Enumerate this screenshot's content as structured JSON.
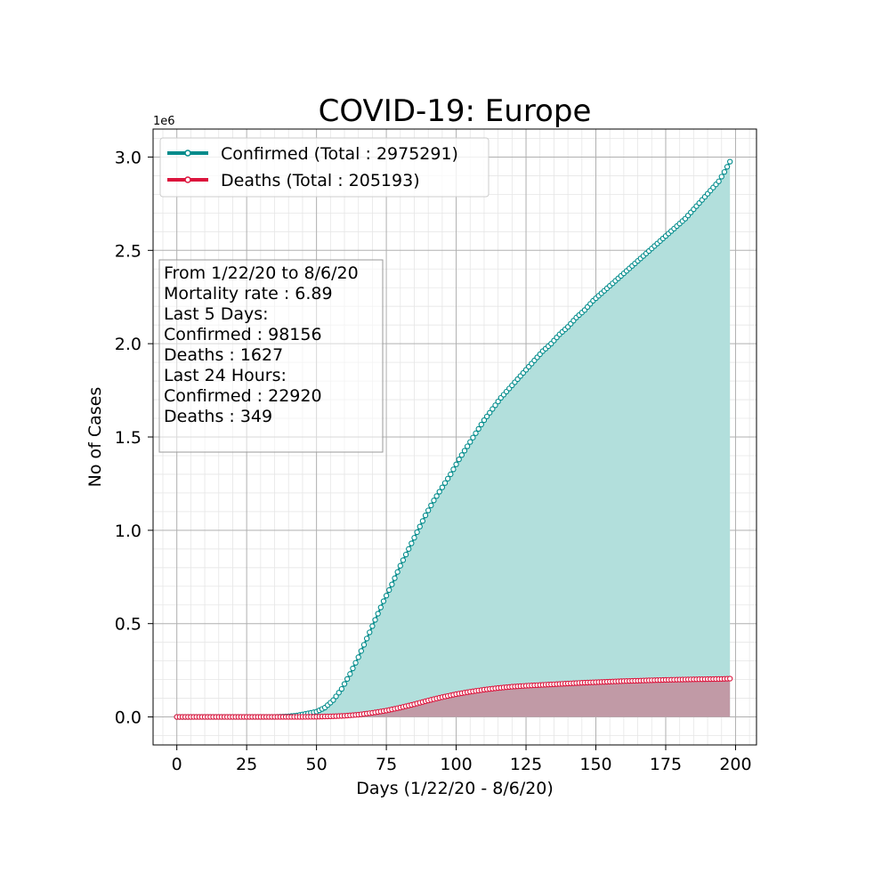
{
  "chart_data": {
    "type": "line",
    "title": "COVID-19: Europe",
    "xlabel": "Days (1/22/20 - 8/6/20)",
    "ylabel": "No of Cases",
    "y_offset_label": "1e6",
    "xlim": [
      -8.5,
      207.5
    ],
    "ylim": [
      -150000,
      3150000
    ],
    "x_ticks": [
      0,
      25,
      50,
      75,
      100,
      125,
      150,
      175,
      200
    ],
    "x_tick_labels": [
      "0",
      "25",
      "50",
      "75",
      "100",
      "125",
      "150",
      "175",
      "200"
    ],
    "y_ticks": [
      0,
      500000,
      1000000,
      1500000,
      2000000,
      2500000,
      3000000
    ],
    "y_tick_labels": [
      "0.0",
      "0.5",
      "1.0",
      "1.5",
      "2.0",
      "2.5",
      "3.0"
    ],
    "grid": true,
    "minor_grid": true,
    "legend_position": "top-left",
    "colors": {
      "confirmed_line": "#008b8b",
      "confirmed_fill": "#b2dfdc",
      "deaths_line": "#dc143c",
      "deaths_fill": "#c19aa6",
      "major_grid": "#b0b0b0",
      "minor_grid": "#e6e6e6"
    },
    "series": [
      {
        "name": "Confirmed (Total : 2975291)",
        "key": "confirmed",
        "points": [
          [
            0,
            0
          ],
          [
            35,
            300
          ],
          [
            40,
            3000
          ],
          [
            43,
            8000
          ],
          [
            46,
            16000
          ],
          [
            50,
            28000
          ],
          [
            53,
            50000
          ],
          [
            56,
            90000
          ],
          [
            59,
            150000
          ],
          [
            62,
            230000
          ],
          [
            65,
            320000
          ],
          [
            68,
            420000
          ],
          [
            71,
            520000
          ],
          [
            74,
            620000
          ],
          [
            77,
            710000
          ],
          [
            80,
            810000
          ],
          [
            83,
            900000
          ],
          [
            86,
            990000
          ],
          [
            89,
            1080000
          ],
          [
            92,
            1160000
          ],
          [
            95,
            1230000
          ],
          [
            98,
            1300000
          ],
          [
            101,
            1380000
          ],
          [
            104,
            1450000
          ],
          [
            107,
            1520000
          ],
          [
            110,
            1590000
          ],
          [
            113,
            1650000
          ],
          [
            116,
            1710000
          ],
          [
            119,
            1760000
          ],
          [
            122,
            1810000
          ],
          [
            125,
            1860000
          ],
          [
            128,
            1910000
          ],
          [
            131,
            1960000
          ],
          [
            134,
            2000000
          ],
          [
            137,
            2050000
          ],
          [
            140,
            2090000
          ],
          [
            143,
            2140000
          ],
          [
            146,
            2180000
          ],
          [
            149,
            2230000
          ],
          [
            152,
            2270000
          ],
          [
            155,
            2310000
          ],
          [
            158,
            2350000
          ],
          [
            161,
            2390000
          ],
          [
            164,
            2430000
          ],
          [
            167,
            2470000
          ],
          [
            170,
            2510000
          ],
          [
            173,
            2550000
          ],
          [
            176,
            2590000
          ],
          [
            179,
            2630000
          ],
          [
            182,
            2670000
          ],
          [
            185,
            2720000
          ],
          [
            188,
            2770000
          ],
          [
            191,
            2820000
          ],
          [
            194,
            2870000
          ],
          [
            196,
            2920000
          ],
          [
            198,
            2975291
          ]
        ]
      },
      {
        "name": "Deaths (Total : 205193)",
        "key": "deaths",
        "points": [
          [
            0,
            0
          ],
          [
            45,
            300
          ],
          [
            50,
            1000
          ],
          [
            55,
            3000
          ],
          [
            60,
            6000
          ],
          [
            65,
            12000
          ],
          [
            70,
            22000
          ],
          [
            75,
            34000
          ],
          [
            80,
            50000
          ],
          [
            85,
            68000
          ],
          [
            90,
            88000
          ],
          [
            95,
            106000
          ],
          [
            100,
            122000
          ],
          [
            105,
            135000
          ],
          [
            110,
            146000
          ],
          [
            115,
            155000
          ],
          [
            120,
            162000
          ],
          [
            125,
            167000
          ],
          [
            130,
            171000
          ],
          [
            135,
            175000
          ],
          [
            140,
            179000
          ],
          [
            145,
            183000
          ],
          [
            150,
            186000
          ],
          [
            155,
            189000
          ],
          [
            160,
            192000
          ],
          [
            165,
            194000
          ],
          [
            170,
            196500
          ],
          [
            175,
            198500
          ],
          [
            180,
            200000
          ],
          [
            185,
            201500
          ],
          [
            190,
            202500
          ],
          [
            195,
            203500
          ],
          [
            198,
            205193
          ]
        ]
      }
    ],
    "annotation_lines": [
      "From 1/22/20 to 8/6/20",
      "Mortality rate : 6.89",
      "Last 5 Days:",
      "Confirmed : 98156",
      "Deaths : 1627",
      "Last 24 Hours:",
      "Confirmed : 22920",
      "Deaths : 349"
    ]
  }
}
